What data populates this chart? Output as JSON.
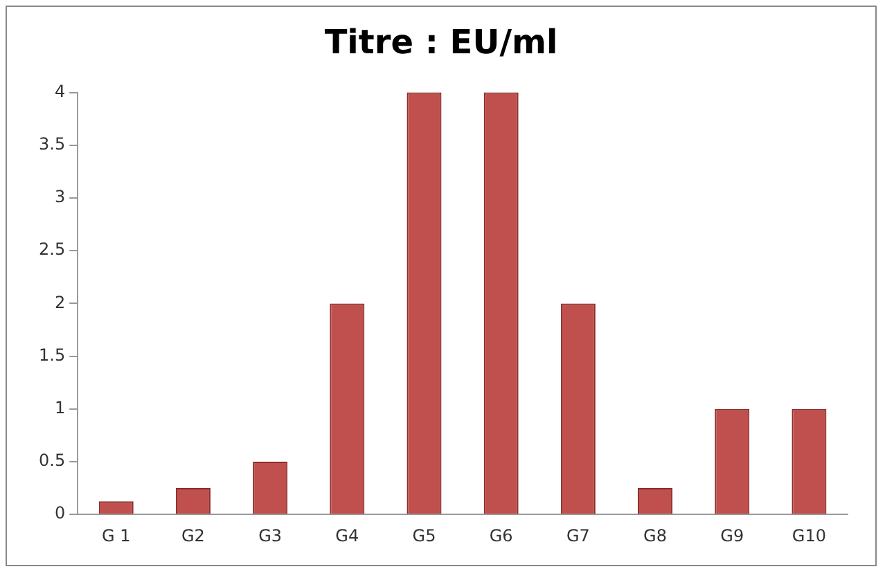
{
  "chart_data": {
    "type": "bar",
    "title": "Titre : EU/ml",
    "categories": [
      "G 1",
      "G2",
      "G3",
      "G4",
      "G5",
      "G6",
      "G7",
      "G8",
      "G9",
      "G10"
    ],
    "values": [
      0.125,
      0.25,
      0.5,
      2,
      4,
      4,
      2,
      0.25,
      1,
      1
    ],
    "color": "#c0504d",
    "ylim": [
      0,
      4
    ],
    "yticks": [
      0,
      0.5,
      1,
      1.5,
      2,
      2.5,
      3,
      3.5,
      4
    ],
    "grid": false
  }
}
